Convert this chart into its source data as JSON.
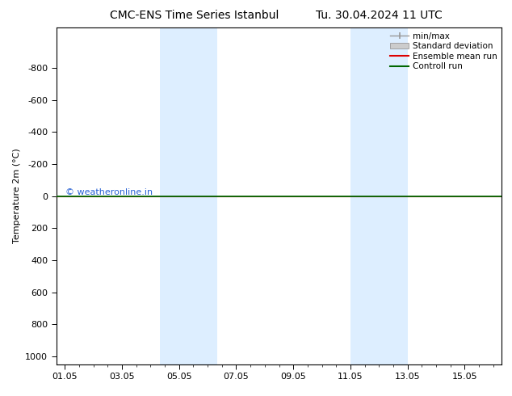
{
  "title": "CMC-ENS Time Series Istanbul",
  "title2": "Tu. 30.04.2024 11 UTC",
  "ylabel": "Temperature 2m (°C)",
  "ylim_min": -1000,
  "ylim_max": 1000,
  "yticks": [
    -800,
    -600,
    -400,
    -200,
    0,
    200,
    400,
    600,
    800,
    1000
  ],
  "xlim_min": 0,
  "xlim_max": 15,
  "xtick_labels": [
    "01.05",
    "03.05",
    "05.05",
    "07.05",
    "09.05",
    "11.05",
    "13.05",
    "15.05"
  ],
  "xtick_positions": [
    0,
    2,
    4,
    6,
    8,
    10,
    12,
    14
  ],
  "shaded_bands": [
    {
      "x_start": 3.33,
      "x_end": 4.0
    },
    {
      "x_start": 4.0,
      "x_end": 5.33
    },
    {
      "x_start": 10.0,
      "x_end": 10.67
    },
    {
      "x_start": 10.67,
      "x_end": 12.0
    }
  ],
  "shade_color": "#ddeeff",
  "green_line_color": "#006600",
  "red_line_color": "#dd0000",
  "legend_entries": [
    "min/max",
    "Standard deviation",
    "Ensemble mean run",
    "Controll run"
  ],
  "watermark": "© weatheronline.in",
  "watermark_color": "#0044cc",
  "background_color": "#ffffff",
  "plot_bg_color": "#ffffff",
  "axis_font_size": 8,
  "title_font_size": 10,
  "ylabel_font_size": 8
}
